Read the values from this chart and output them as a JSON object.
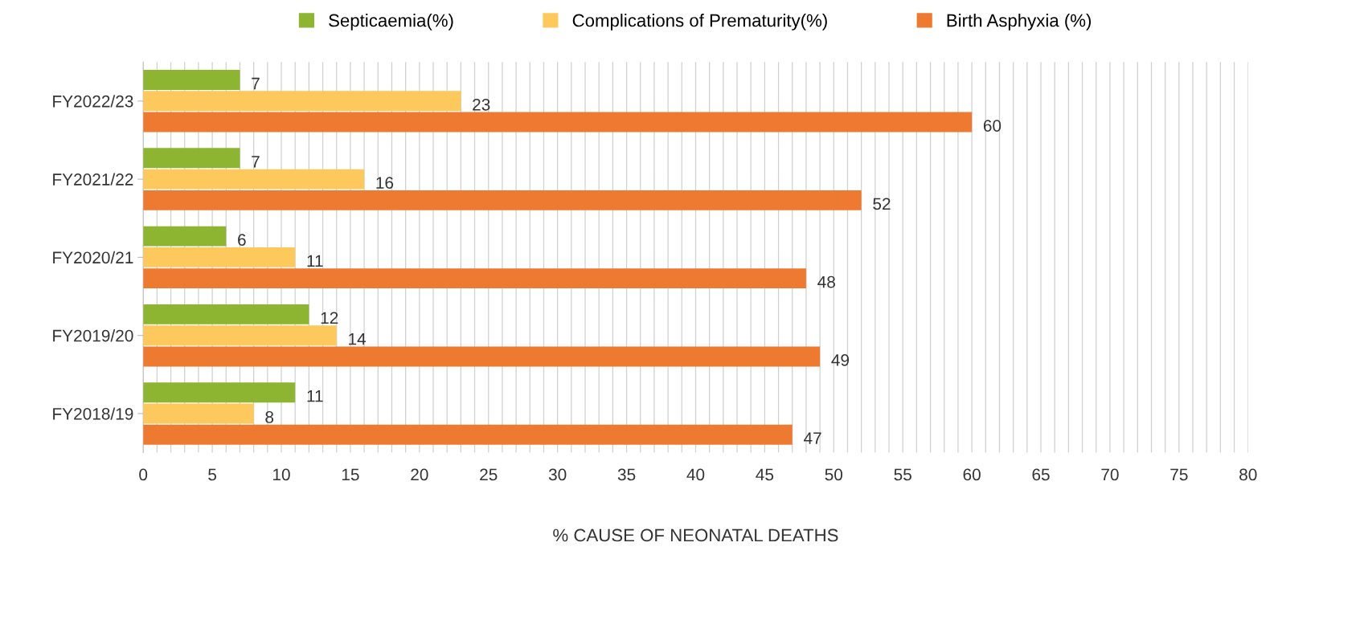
{
  "chart_data": {
    "type": "bar",
    "orientation": "horizontal",
    "xlabel": "% CAUSE OF NEONATAL DEATHS",
    "categories": [
      "FY2022/23",
      "FY2021/22",
      "FY2020/21",
      "FY2019/20",
      "FY2018/19"
    ],
    "series": [
      {
        "name": "Septicaemia(%)",
        "color": "#8db532",
        "values": [
          7,
          7,
          6,
          12,
          11
        ]
      },
      {
        "name": "Complications of Prematurity(%)",
        "color": "#fdc95c",
        "values": [
          23,
          16,
          11,
          14,
          8
        ]
      },
      {
        "name": "Birth Asphyxia (%)",
        "color": "#ee7a31",
        "values": [
          60,
          52,
          48,
          49,
          47
        ]
      }
    ],
    "xlim": [
      0,
      80
    ],
    "xticks": [
      0,
      {
        "value": 1,
        "label": null
      },
      {
        "value": 2,
        "label": null
      },
      {
        "value": 3,
        "label": null
      },
      {
        "value": 4,
        "label": null
      },
      5,
      {
        "value": 6,
        "label": null
      },
      {
        "value": 7,
        "label": null
      },
      {
        "value": 8,
        "label": null
      },
      {
        "value": 9,
        "label": null
      },
      10,
      {
        "value": 11,
        "label": null
      },
      {
        "value": 12,
        "label": null
      },
      {
        "value": 13,
        "label": null
      },
      {
        "value": 14,
        "label": null
      },
      15,
      {
        "value": 16,
        "label": null
      },
      {
        "value": 17,
        "label": null
      },
      {
        "value": 18,
        "label": null
      },
      {
        "value": 19,
        "label": null
      },
      20,
      {
        "value": 21,
        "label": null
      },
      {
        "value": 22,
        "label": null
      },
      {
        "value": 23,
        "label": null
      },
      {
        "value": 24,
        "label": null
      },
      25,
      {
        "value": 26,
        "label": null
      },
      {
        "value": 27,
        "label": null
      },
      {
        "value": 28,
        "label": null
      },
      {
        "value": 29,
        "label": null
      },
      30,
      {
        "value": 31,
        "label": null
      },
      {
        "value": 32,
        "label": null
      },
      {
        "value": 33,
        "label": null
      },
      {
        "value": 34,
        "label": null
      },
      35,
      {
        "value": 36,
        "label": null
      },
      {
        "value": 37,
        "label": null
      },
      {
        "value": 38,
        "label": null
      },
      {
        "value": 39,
        "label": null
      },
      40,
      {
        "value": 41,
        "label": null
      },
      {
        "value": 42,
        "label": null
      },
      {
        "value": 43,
        "label": null
      },
      {
        "value": 44,
        "label": null
      },
      45,
      {
        "value": 46,
        "label": null
      },
      {
        "value": 47,
        "label": null
      },
      {
        "value": 48,
        "label": null
      },
      {
        "value": 49,
        "label": null
      },
      50,
      {
        "value": 51,
        "label": null
      },
      {
        "value": 52,
        "label": null
      },
      {
        "value": 53,
        "label": null
      },
      {
        "value": 54,
        "label": null
      },
      55,
      {
        "value": 56,
        "label": null
      },
      {
        "value": 57,
        "label": null
      },
      {
        "value": 58,
        "label": null
      },
      {
        "value": 59,
        "label": null
      },
      60,
      {
        "value": 61,
        "label": null
      },
      {
        "value": 62,
        "label": null
      },
      {
        "value": 63,
        "label": null
      },
      {
        "value": 64,
        "label": null
      },
      65,
      {
        "value": 66,
        "label": null
      },
      {
        "value": 67,
        "label": null
      },
      {
        "value": 68,
        "label": null
      },
      {
        "value": 69,
        "label": null
      },
      70,
      {
        "value": 71,
        "label": null
      },
      {
        "value": 72,
        "label": null
      },
      {
        "value": 73,
        "label": null
      },
      {
        "value": 74,
        "label": null
      },
      75,
      {
        "value": 76,
        "label": null
      },
      {
        "value": 77,
        "label": null
      },
      {
        "value": 78,
        "label": null
      },
      {
        "value": 79,
        "label": null
      },
      80
    ],
    "grid": "x",
    "legend": "top",
    "data_labels": true
  }
}
